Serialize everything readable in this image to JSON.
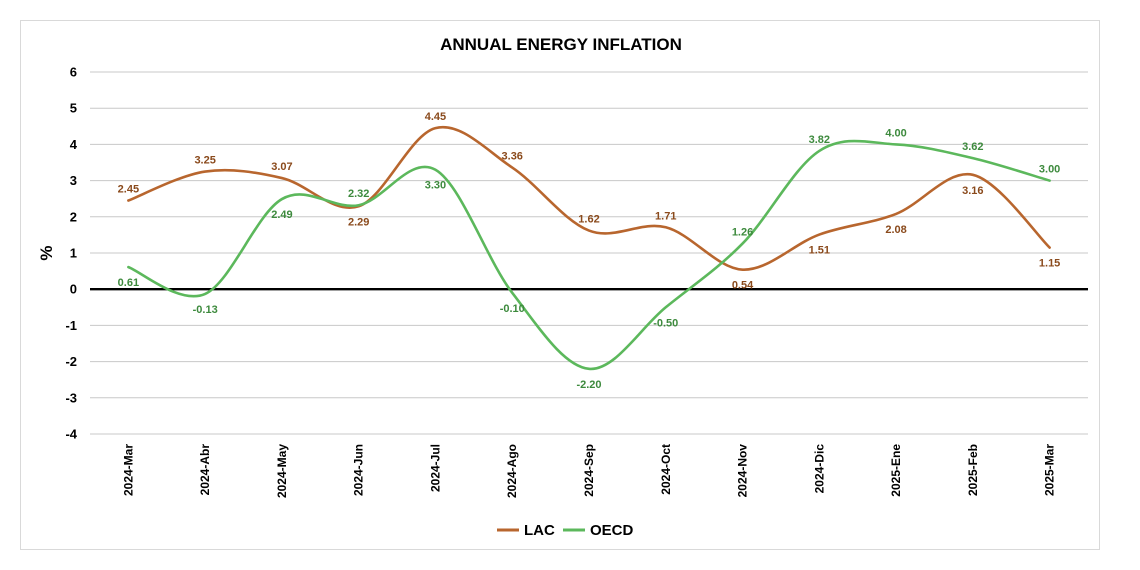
{
  "chart_data": {
    "type": "line",
    "title": "ANNUAL ENERGY INFLATION",
    "ylabel": "%",
    "xlabel": "",
    "ylim": [
      -4,
      6
    ],
    "yticks": [
      6,
      5,
      4,
      3,
      2,
      1,
      0,
      -1,
      -2,
      -3,
      -4
    ],
    "grid": true,
    "legend_position": "bottom",
    "categories": [
      "2024-Mar",
      "2024-Abr",
      "2024-May",
      "2024-Jun",
      "2024-Jul",
      "2024-Ago",
      "2024-Sep",
      "2024-Oct",
      "2024-Nov",
      "2024-Dic",
      "2025-Ene",
      "2025-Feb",
      "2025-Mar"
    ],
    "series": [
      {
        "name": "LAC",
        "color": "#b8662e",
        "values": [
          2.45,
          3.25,
          3.07,
          2.29,
          4.45,
          3.36,
          1.62,
          1.71,
          0.54,
          1.51,
          2.08,
          3.16,
          1.15
        ],
        "labels": [
          "2.45",
          "3.25",
          "3.07",
          "2.29",
          "4.45",
          "3.36",
          "1.62",
          "1.71",
          "0.54",
          "1.51",
          "2.08",
          "3.16",
          "1.15"
        ]
      },
      {
        "name": "OECD",
        "color": "#5cb85c",
        "values": [
          0.61,
          -0.13,
          2.49,
          2.32,
          3.3,
          -0.1,
          -2.2,
          -0.5,
          1.26,
          3.82,
          4.0,
          3.62,
          3.0
        ],
        "labels": [
          "0.61",
          "-0.13",
          "2.49",
          "2.32",
          "3.30",
          "-0.10",
          "-2.20",
          "-0.50",
          "1.26",
          "3.82",
          "4.00",
          "3.62",
          "3.00"
        ]
      }
    ]
  }
}
